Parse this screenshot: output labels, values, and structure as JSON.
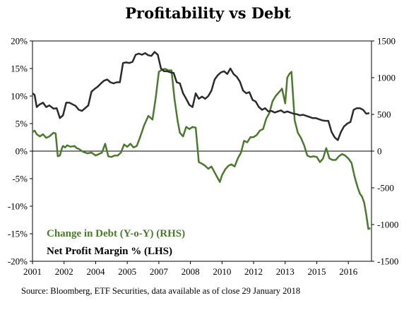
{
  "chart_data": {
    "type": "line",
    "title": "Profitability vs Debt",
    "source": "Source: Bloomberg, ETF Securities, data available as of close 29 January 2018",
    "x_ticks": [
      "2001",
      "2002",
      "2004",
      "2005",
      "2007",
      "2008",
      "2010",
      "2012",
      "2013",
      "2015",
      "2016"
    ],
    "x_tick_dates": [
      2001.0,
      2002.5,
      2004.0,
      2005.5,
      2007.0,
      2008.5,
      2010.0,
      2011.5,
      2013.0,
      2014.5,
      2016.0
    ],
    "xlim": [
      2001.0,
      2017.1
    ],
    "left_axis": {
      "ylim": [
        -20,
        20
      ],
      "ticks": [
        20,
        15,
        10,
        5,
        0,
        -5,
        -10,
        -15,
        -20
      ],
      "tick_labels": [
        "20%",
        "15%",
        "10%",
        "5%",
        "0%",
        "-5%",
        "-10%",
        "-15%",
        "-20%"
      ]
    },
    "right_axis": {
      "ylim": [
        -1500,
        1500
      ],
      "ticks": [
        1500,
        1000,
        500,
        0,
        -500,
        -1000,
        -1500
      ],
      "tick_labels": [
        "1500",
        "1000",
        "500",
        "0",
        "-500",
        "-1000",
        "-1500"
      ]
    },
    "legend_placement": "bottom-left",
    "series": [
      {
        "name": "Change in Debt (Y-o-Y) (RHS)",
        "axis": "right",
        "color": "#4a7a2b",
        "x": [
          2001.0,
          2001.1,
          2001.2,
          2001.35,
          2001.5,
          2001.65,
          2001.8,
          2002.0,
          2002.1,
          2002.2,
          2002.3,
          2002.4,
          2002.45,
          2002.55,
          2002.65,
          2002.8,
          2003.0,
          2003.1,
          2003.2,
          2003.4,
          2003.6,
          2003.8,
          2004.0,
          2004.15,
          2004.3,
          2004.45,
          2004.6,
          2004.75,
          2004.9,
          2005.05,
          2005.2,
          2005.35,
          2005.5,
          2005.65,
          2005.8,
          2005.95,
          2006.1,
          2006.3,
          2006.5,
          2006.7,
          2006.85,
          2007.0,
          2007.15,
          2007.3,
          2007.45,
          2007.6,
          2007.75,
          2007.9,
          2008.0,
          2008.15,
          2008.3,
          2008.45,
          2008.6,
          2008.75,
          2008.9,
          2009.05,
          2009.2,
          2009.35,
          2009.5,
          2009.65,
          2009.8,
          2009.9,
          2010.0,
          2010.15,
          2010.3,
          2010.45,
          2010.6,
          2010.75,
          2010.9,
          2011.05,
          2011.2,
          2011.35,
          2011.5,
          2011.65,
          2011.8,
          2011.95,
          2012.1,
          2012.25,
          2012.4,
          2012.55,
          2012.7,
          2012.85,
          2013.0,
          2013.1,
          2013.2,
          2013.3,
          2013.45,
          2013.6,
          2013.75,
          2013.9,
          2014.05,
          2014.2,
          2014.35,
          2014.5,
          2014.65,
          2014.8,
          2014.95,
          2015.1,
          2015.25,
          2015.4,
          2015.55,
          2015.7,
          2015.85,
          2016.0,
          2016.15,
          2016.3,
          2016.45,
          2016.55,
          2016.65,
          2016.75,
          2016.85,
          2016.95,
          2017.05
        ],
        "values": [
          260,
          280,
          230,
          200,
          230,
          180,
          200,
          250,
          240,
          -70,
          -60,
          40,
          70,
          50,
          80,
          60,
          70,
          40,
          30,
          -10,
          -30,
          -20,
          -60,
          -40,
          -20,
          100,
          -70,
          -80,
          -60,
          -60,
          -20,
          90,
          60,
          100,
          50,
          70,
          180,
          350,
          480,
          430,
          720,
          1080,
          1110,
          1120,
          1100,
          1100,
          700,
          400,
          250,
          200,
          330,
          300,
          330,
          320,
          -150,
          -170,
          -200,
          -240,
          -210,
          -290,
          -370,
          -420,
          -330,
          -250,
          -200,
          -180,
          -210,
          -100,
          -20,
          140,
          120,
          190,
          190,
          220,
          280,
          300,
          440,
          520,
          680,
          750,
          800,
          850,
          650,
          1000,
          1050,
          1080,
          420,
          250,
          180,
          80,
          -60,
          -80,
          -70,
          -80,
          -150,
          -100,
          40,
          -100,
          -120,
          -120,
          -70,
          -40,
          -60,
          -100,
          -160,
          -350,
          -500,
          -580,
          -620,
          -700,
          -860,
          -1060,
          -1050
        ]
      },
      {
        "name": "Net Profit Margin % (LHS)",
        "axis": "left",
        "color": "#2b2b2b",
        "x": [
          2001.0,
          2001.1,
          2001.2,
          2001.35,
          2001.5,
          2001.65,
          2001.8,
          2002.0,
          2002.15,
          2002.3,
          2002.45,
          2002.6,
          2002.75,
          2002.9,
          2003.05,
          2003.2,
          2003.35,
          2003.5,
          2003.65,
          2003.8,
          2003.95,
          2004.1,
          2004.25,
          2004.4,
          2004.55,
          2004.7,
          2004.85,
          2005.0,
          2005.15,
          2005.3,
          2005.45,
          2005.6,
          2005.75,
          2005.9,
          2006.05,
          2006.2,
          2006.35,
          2006.5,
          2006.65,
          2006.8,
          2006.95,
          2007.1,
          2007.25,
          2007.4,
          2007.55,
          2007.7,
          2007.85,
          2008.0,
          2008.15,
          2008.3,
          2008.45,
          2008.6,
          2008.75,
          2008.9,
          2009.05,
          2009.2,
          2009.35,
          2009.5,
          2009.65,
          2009.8,
          2009.95,
          2010.1,
          2010.25,
          2010.4,
          2010.55,
          2010.7,
          2010.85,
          2011.0,
          2011.15,
          2011.3,
          2011.45,
          2011.6,
          2011.75,
          2011.9,
          2012.05,
          2012.2,
          2012.35,
          2012.5,
          2012.65,
          2012.8,
          2012.95,
          2013.1,
          2013.25,
          2013.4,
          2013.55,
          2013.7,
          2013.85,
          2014.0,
          2014.15,
          2014.3,
          2014.45,
          2014.6,
          2014.75,
          2014.9,
          2015.05,
          2015.2,
          2015.35,
          2015.5,
          2015.65,
          2015.8,
          2015.95,
          2016.1,
          2016.25,
          2016.4,
          2016.55,
          2016.7,
          2016.85,
          2017.0
        ],
        "values": [
          10.5,
          10.2,
          8.0,
          8.5,
          8.8,
          8.0,
          8.3,
          7.7,
          7.8,
          6.0,
          6.5,
          8.8,
          8.8,
          8.5,
          8.2,
          7.5,
          7.3,
          7.8,
          8.3,
          10.8,
          11.3,
          11.7,
          12.3,
          12.8,
          13.0,
          12.5,
          12.3,
          12.5,
          12.5,
          16.0,
          16.1,
          16.0,
          16.2,
          17.5,
          17.7,
          17.5,
          17.8,
          17.4,
          17.3,
          18.0,
          17.5,
          15.0,
          14.5,
          14.5,
          14.3,
          14.2,
          12.5,
          12.3,
          10.5,
          9.5,
          8.4,
          8.0,
          10.5,
          9.5,
          9.9,
          9.5,
          10.0,
          11.0,
          13.0,
          13.8,
          14.3,
          14.5,
          14.0,
          15.0,
          14.0,
          13.5,
          12.6,
          11.0,
          10.5,
          10.7,
          9.3,
          9.0,
          8.0,
          7.5,
          7.8,
          7.2,
          7.3,
          7.0,
          7.2,
          7.4,
          7.0,
          7.2,
          7.0,
          6.8,
          6.7,
          6.5,
          6.6,
          6.4,
          6.2,
          6.0,
          6.0,
          5.8,
          5.6,
          5.5,
          5.5,
          3.5,
          2.5,
          2.0,
          3.5,
          4.5,
          5.0,
          5.3,
          7.5,
          7.8,
          7.8,
          7.5,
          6.8,
          6.9
        ]
      }
    ]
  }
}
